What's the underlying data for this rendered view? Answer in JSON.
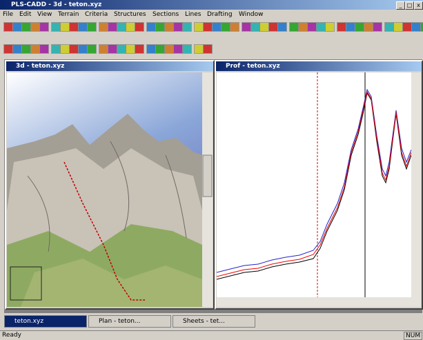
{
  "title": "PLS-CADD - 3d - teton.xyz",
  "menu": [
    "File",
    "Edit",
    "View",
    "Terrain",
    "Criteria",
    "Structures",
    "Sections",
    "Lines",
    "Drafting",
    "Window"
  ],
  "windows": [
    {
      "title": "3d - teton.xyz"
    },
    {
      "title": "Prof - teton.xyz"
    }
  ],
  "taskbar": [
    {
      "label": "teton.xyz"
    },
    {
      "label": "Plan - teton..."
    },
    {
      "label": "Sheets - tet..."
    }
  ],
  "status": {
    "text": "Ready",
    "indicator": "NUM"
  }
}
